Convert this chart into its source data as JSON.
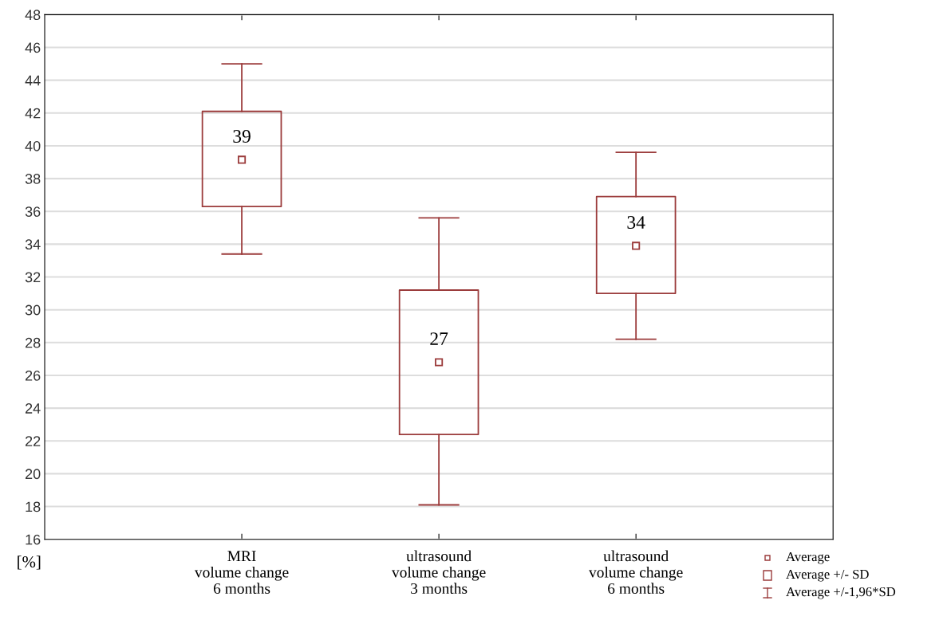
{
  "chart_data": {
    "type": "box",
    "ylabel": "[%]",
    "categories": [
      "MRI\nvolume change\n6 months",
      "ultrasound\nvolume change\n3 months",
      "ultrasound\nvolume change\n6 months"
    ],
    "series": [
      {
        "color": "#9b3b3b",
        "value_labels": [
          "39",
          "27",
          "34"
        ],
        "boxes": [
          {
            "low": 33.4,
            "q1": 36.3,
            "mean": 39.15,
            "q3": 42.1,
            "high": 45.0
          },
          {
            "low": 18.1,
            "q1": 22.4,
            "mean": 26.8,
            "q3": 31.2,
            "high": 35.6
          },
          {
            "low": 28.2,
            "q1": 31.0,
            "mean": 33.9,
            "q3": 36.9,
            "high": 39.6
          }
        ]
      }
    ],
    "ylim": [
      16,
      48
    ],
    "yticks": [
      16,
      18,
      20,
      22,
      24,
      26,
      28,
      30,
      32,
      34,
      36,
      38,
      40,
      42,
      44,
      46,
      48
    ],
    "grid": "y",
    "marker": "square",
    "annotations": [
      "Average",
      "Average +/- SD",
      "Average +/-1,96*SD"
    ]
  }
}
